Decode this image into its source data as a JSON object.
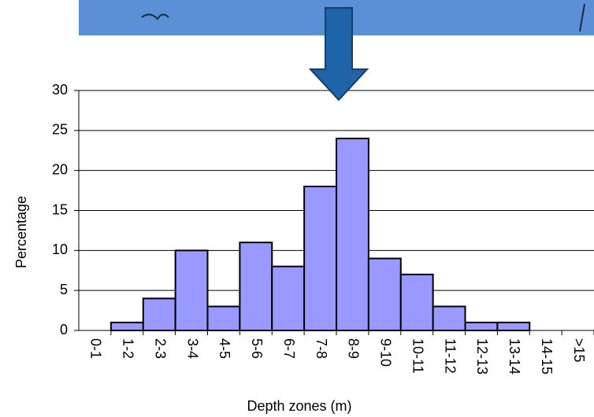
{
  "chart_data": {
    "type": "bar",
    "x_label": "Depth zones (m)",
    "y_label": "Percentage",
    "categories": [
      "0-1",
      "1-2",
      "2-3",
      "3-4",
      "4-5",
      "5-6",
      "6-7",
      "7-8",
      "8-9",
      "9-10",
      "10-11",
      "11-12",
      "12-13",
      "13-14",
      "14-15",
      ">15"
    ],
    "values": [
      0,
      1,
      4,
      10,
      3,
      11,
      8,
      18,
      24,
      9,
      7,
      3,
      1,
      1,
      0,
      0
    ],
    "color": "#9999ff",
    "ylim": [
      0,
      30
    ],
    "yticks": [
      0,
      5,
      10,
      15,
      20,
      25,
      30
    ],
    "grid": true
  }
}
